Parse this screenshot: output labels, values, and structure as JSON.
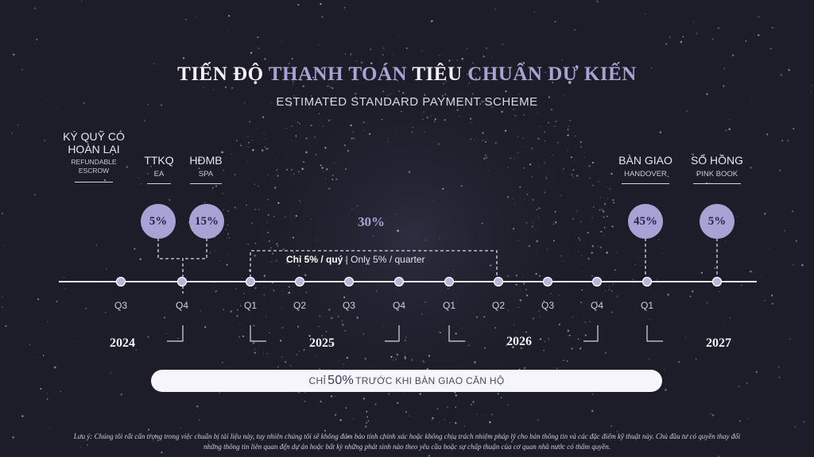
{
  "title_parts": {
    "p1": "TIẾN ĐỘ ",
    "p2": "THANH TOÁN ",
    "p3": "TIÊU ",
    "p4": "CHUẨN DỰ KIẾN"
  },
  "subtitle": "ESTIMATED STANDARD PAYMENT SCHEME",
  "milestones": [
    {
      "vi": "KÝ QUỸ CÓ",
      "vi2": "HOÀN LẠI",
      "en": "REFUNDABLE",
      "en2": "ESCROW"
    },
    {
      "vi": "TTKQ",
      "en": "EA",
      "percent": "5%"
    },
    {
      "vi": "HĐMB",
      "en": "SPA",
      "percent": "15%"
    },
    {
      "percent": "30%"
    },
    {
      "vi": "BÀN GIAO",
      "en": "HANDOVER",
      "percent": "45%"
    },
    {
      "vi": "SỔ HỒNG",
      "en": "PINK BOOK",
      "percent": "5%"
    }
  ],
  "quarter_note": {
    "bold": "Chỉ 5% / quý",
    "rest": " | Only 5% / quarter"
  },
  "quarters": [
    "Q3",
    "Q4",
    "Q1",
    "Q2",
    "Q3",
    "Q4",
    "Q1",
    "Q2",
    "Q3",
    "Q4",
    "Q1"
  ],
  "years": [
    "2024",
    "2025",
    "2026",
    "2027"
  ],
  "banner": {
    "pre": "CHỈ ",
    "big": "50%",
    "post": " TRƯỚC KHI BÀN GIAO CĂN HỘ"
  },
  "disclaimer": {
    "line1": "Lưu ý: Chúng tôi rất cẩn trọng trong việc chuẩn bị tài liệu này, tuy nhiên chúng tôi sẽ không đảm bảo tính chính xác hoặc không chịu trách nhiệm pháp lý cho bản thông tin và các đặc điểm kỹ thuật này. Chủ đầu tư có quyền thay đổi",
    "line2": "những thông tin liên quan đến dự án hoặc bất kỳ những phát sinh nào theo yêu cầu hoặc sự chấp thuận của cơ quan nhà nước có thẩm quyền."
  },
  "colors": {
    "background": "#1c1d28",
    "accent": "#a7a3d4",
    "dot": "#b9b6de"
  }
}
